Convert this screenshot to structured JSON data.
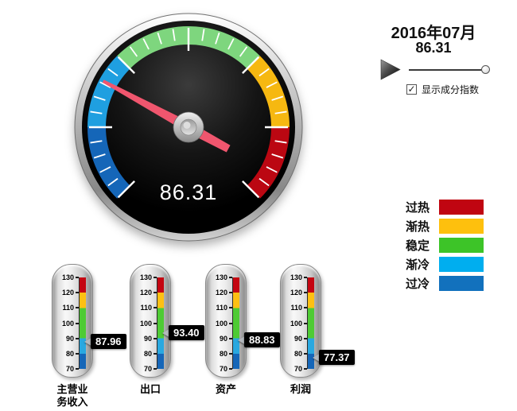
{
  "panel": {
    "date_label": "2016年07月",
    "value_label": "86.31",
    "play_icon": "play-triangle",
    "slider": {
      "position_percent": 100
    },
    "checkbox": {
      "checked": true,
      "check_glyph": "✓",
      "label": "显示成分指数"
    }
  },
  "gauge": {
    "min": 70,
    "max": 130,
    "value": 86.31,
    "value_label": "86.31",
    "start_angle_deg": 225,
    "sweep_deg": 270,
    "major_tick_step": 10,
    "minor_tick_step": 2,
    "tick_color": "#ffffff",
    "needle_color": "#f0566e",
    "zones": [
      {
        "from": 70,
        "to": 80,
        "color": "#1566b8"
      },
      {
        "from": 80,
        "to": 90,
        "color": "#1f9fe0"
      },
      {
        "from": 90,
        "to": 110,
        "color": "#7ed67e"
      },
      {
        "from": 110,
        "to": 120,
        "color": "#f6b811"
      },
      {
        "from": 120,
        "to": 130,
        "color": "#bb0712"
      }
    ]
  },
  "legend": {
    "items": [
      {
        "label": "过热",
        "color": "#c00511"
      },
      {
        "label": "渐热",
        "color": "#fec00d"
      },
      {
        "label": "稳定",
        "color": "#3dc428"
      },
      {
        "label": "渐冷",
        "color": "#00aeef"
      },
      {
        "label": "过冷",
        "color": "#1271bd"
      }
    ]
  },
  "thermometers": {
    "min": 70,
    "max": 130,
    "tick_step": 10,
    "zones": [
      {
        "from": 70,
        "to": 80,
        "color": "#1566b8"
      },
      {
        "from": 80,
        "to": 90,
        "color": "#29a8e0"
      },
      {
        "from": 90,
        "to": 110,
        "color": "#4ecb34"
      },
      {
        "from": 110,
        "to": 120,
        "color": "#fdc012"
      },
      {
        "from": 120,
        "to": 130,
        "color": "#c40511"
      }
    ],
    "items": [
      {
        "label": "主营业\n务收入",
        "value": 87.96,
        "value_label": "87.96"
      },
      {
        "label": "出口",
        "value": 93.4,
        "value_label": "93.40"
      },
      {
        "label": "资产",
        "value": 88.83,
        "value_label": "88.83"
      },
      {
        "label": "利润",
        "value": 77.37,
        "value_label": "77.37"
      }
    ]
  },
  "chart_data": [
    {
      "type": "gauge",
      "title": "2016年07月",
      "value": 86.31,
      "min": 70,
      "max": 130,
      "zones": [
        {
          "label": "过冷",
          "range": [
            70,
            80
          ]
        },
        {
          "label": "渐冷",
          "range": [
            80,
            90
          ]
        },
        {
          "label": "稳定",
          "range": [
            90,
            110
          ]
        },
        {
          "label": "渐热",
          "range": [
            110,
            120
          ]
        },
        {
          "label": "过热",
          "range": [
            120,
            130
          ]
        }
      ],
      "legend_position": "right"
    },
    {
      "type": "gauge",
      "subtype": "thermometer-linear",
      "categories": [
        "主营业务收入",
        "出口",
        "资产",
        "利润"
      ],
      "values": [
        87.96,
        93.4,
        88.83,
        77.37
      ],
      "min": 70,
      "max": 130,
      "tick_step": 10
    }
  ]
}
